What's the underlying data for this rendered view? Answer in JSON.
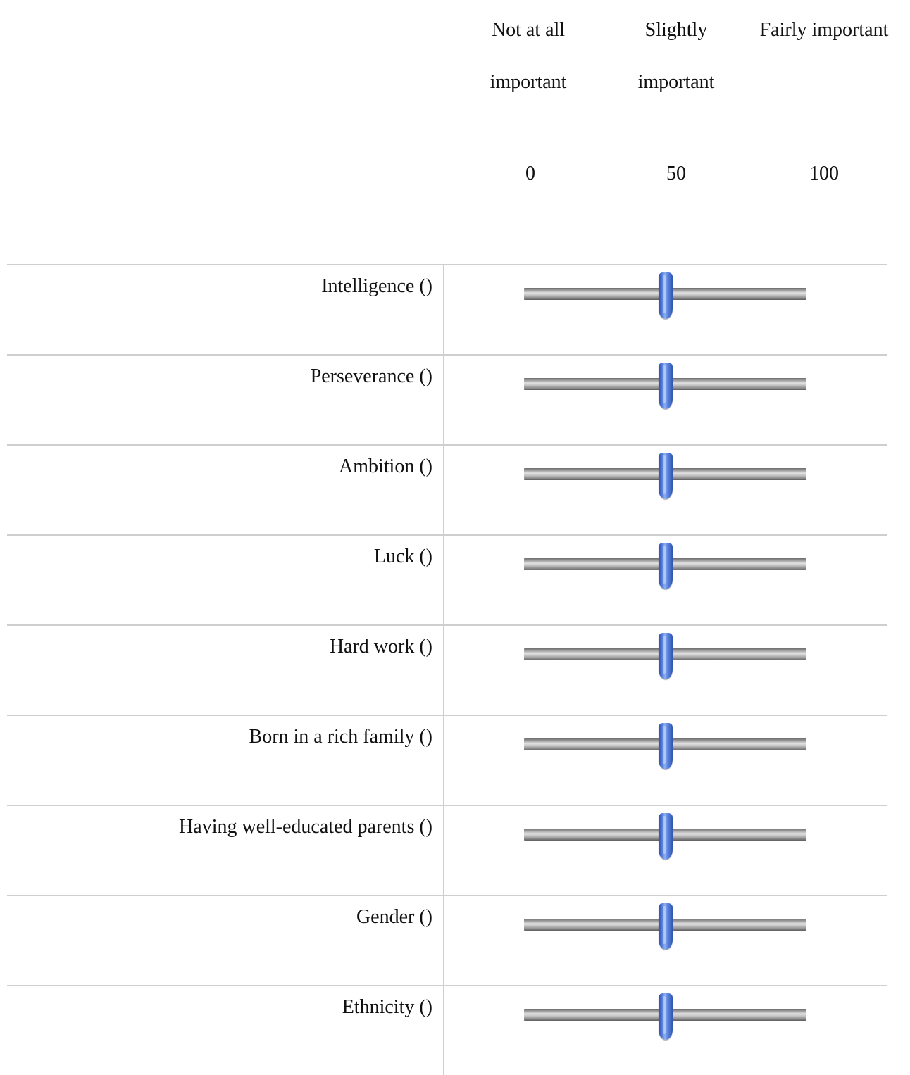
{
  "scale": {
    "labels": [
      "Not at all\nimportant",
      "Slightly\nimportant",
      "Fairly important"
    ],
    "numbers": [
      "0",
      "50",
      "100"
    ],
    "min": 0,
    "max": 100
  },
  "items": [
    {
      "label": "Intelligence ()",
      "value": 50
    },
    {
      "label": "Perseverance ()",
      "value": 50
    },
    {
      "label": "Ambition ()",
      "value": 50
    },
    {
      "label": "Luck ()",
      "value": 50
    },
    {
      "label": "Hard work ()",
      "value": 50
    },
    {
      "label": "Born in a rich family ()",
      "value": 50
    },
    {
      "label": "Having well-educated parents ()",
      "value": 50
    },
    {
      "label": "Gender ()",
      "value": 50
    },
    {
      "label": "Ethnicity ()",
      "value": 50
    }
  ],
  "colors": {
    "thumb": "#4c76d8",
    "track": "#9a9a9a",
    "divider": "#cfcfcf"
  }
}
